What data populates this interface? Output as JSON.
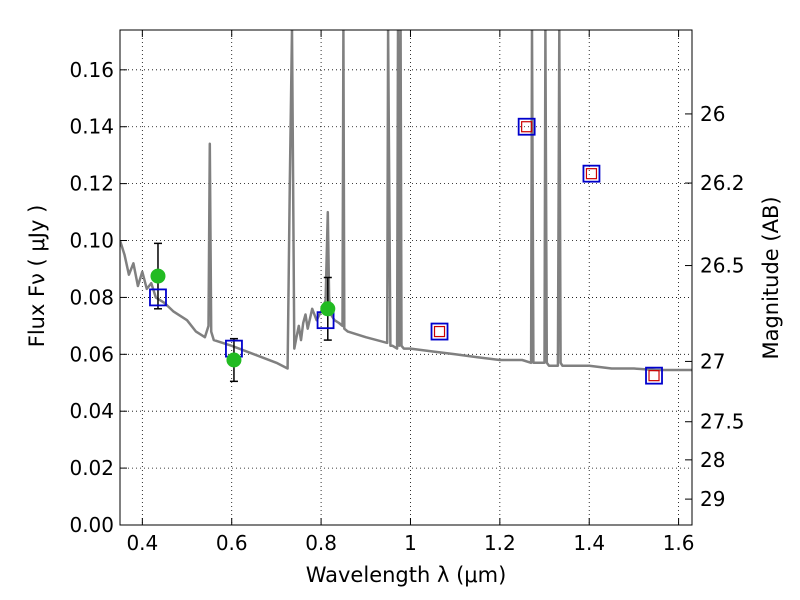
{
  "chart_data": {
    "type": "scatter",
    "title": "",
    "xlabel": "Wavelength  λ (μm)",
    "ylabel": "Flux  Fν  ( μJy )",
    "y2label": "Magnitude (AB)",
    "xlim": [
      0.35,
      1.63
    ],
    "ylim": [
      0.0,
      0.174
    ],
    "grid": true,
    "grid_style": "dotted",
    "x_ticks": [
      0.4,
      0.6,
      0.8,
      1.0,
      1.2,
      1.4,
      1.6
    ],
    "x_tick_labels": [
      "0.4",
      "0.6",
      "0.8",
      "1",
      "1.2",
      "1.4",
      "1.6"
    ],
    "y_ticks": [
      0.0,
      0.02,
      0.04,
      0.06,
      0.08,
      0.1,
      0.12,
      0.14,
      0.16
    ],
    "y_tick_labels": [
      "0.00",
      "0.02",
      "0.04",
      "0.06",
      "0.08",
      "0.10",
      "0.12",
      "0.14",
      "0.16"
    ],
    "y2_ticks": [
      {
        "label": "26",
        "flux": 0.1445
      },
      {
        "label": "26.2",
        "flux": 0.1202
      },
      {
        "label": "26.5",
        "flux": 0.0912
      },
      {
        "label": "27",
        "flux": 0.0575
      },
      {
        "label": "27.5",
        "flux": 0.0363
      },
      {
        "label": "28",
        "flux": 0.0229
      },
      {
        "label": "29",
        "flux": 0.0091
      }
    ],
    "colors": {
      "model": "#808080",
      "observed": "#22bb22",
      "model_square": "#0000cc",
      "inner_square": "#cc0000",
      "errorbar": "#000000"
    },
    "series": [
      {
        "type": "line",
        "x": [
          0.35,
          0.36,
          0.37,
          0.38,
          0.39,
          0.4,
          0.41,
          0.42,
          0.43,
          0.45,
          0.47,
          0.5,
          0.52,
          0.54,
          0.548,
          0.551,
          0.554,
          0.56,
          0.6,
          0.65,
          0.7,
          0.725,
          0.73,
          0.735,
          0.74,
          0.745,
          0.75,
          0.755,
          0.76,
          0.765,
          0.77,
          0.78,
          0.79,
          0.8,
          0.81,
          0.815,
          0.818,
          0.822,
          0.83,
          0.84,
          0.848,
          0.85,
          0.852,
          0.86,
          0.9,
          0.948,
          0.95,
          0.955,
          0.96,
          0.97,
          0.972,
          0.975,
          0.978,
          0.98,
          0.985,
          1.0,
          1.05,
          1.1,
          1.15,
          1.2,
          1.25,
          1.27,
          1.272,
          1.275,
          1.28,
          1.3,
          1.302,
          1.305,
          1.31,
          1.33,
          1.333,
          1.336,
          1.34,
          1.4,
          1.45,
          1.5,
          1.55,
          1.63
        ],
        "y": [
          0.1,
          0.095,
          0.088,
          0.092,
          0.084,
          0.089,
          0.083,
          0.085,
          0.08,
          0.078,
          0.075,
          0.072,
          0.068,
          0.066,
          0.07,
          0.134,
          0.068,
          0.065,
          0.063,
          0.06,
          0.057,
          0.055,
          0.12,
          0.174,
          0.062,
          0.066,
          0.07,
          0.065,
          0.071,
          0.074,
          0.069,
          0.076,
          0.072,
          0.075,
          0.079,
          0.11,
          0.08,
          0.074,
          0.072,
          0.071,
          0.07,
          0.174,
          0.069,
          0.068,
          0.066,
          0.064,
          0.174,
          0.063,
          0.063,
          0.062,
          0.174,
          0.063,
          0.174,
          0.063,
          0.062,
          0.062,
          0.061,
          0.06,
          0.059,
          0.058,
          0.058,
          0.057,
          0.174,
          0.057,
          0.057,
          0.057,
          0.174,
          0.057,
          0.056,
          0.056,
          0.174,
          0.057,
          0.056,
          0.056,
          0.055,
          0.055,
          0.0545,
          0.0545
        ]
      },
      {
        "type": "scatter",
        "marker": "circle",
        "x": [
          0.435,
          0.605,
          0.815
        ],
        "y": [
          0.0875,
          0.058,
          0.076
        ],
        "yerr_low": [
          0.0115,
          0.0075,
          0.011
        ],
        "yerr_high": [
          0.0115,
          0.0075,
          0.011
        ]
      },
      {
        "type": "scatter",
        "marker": "square",
        "x": [
          0.435,
          0.605,
          0.81,
          1.065,
          1.26,
          1.405,
          1.545
        ],
        "y": [
          0.08,
          0.062,
          0.072,
          0.068,
          0.14,
          0.1235,
          0.0525
        ]
      },
      {
        "type": "scatter",
        "marker": "small-square",
        "x": [
          1.065,
          1.26,
          1.405,
          1.545
        ],
        "y": [
          0.068,
          0.14,
          0.1235,
          0.0525
        ]
      }
    ]
  }
}
